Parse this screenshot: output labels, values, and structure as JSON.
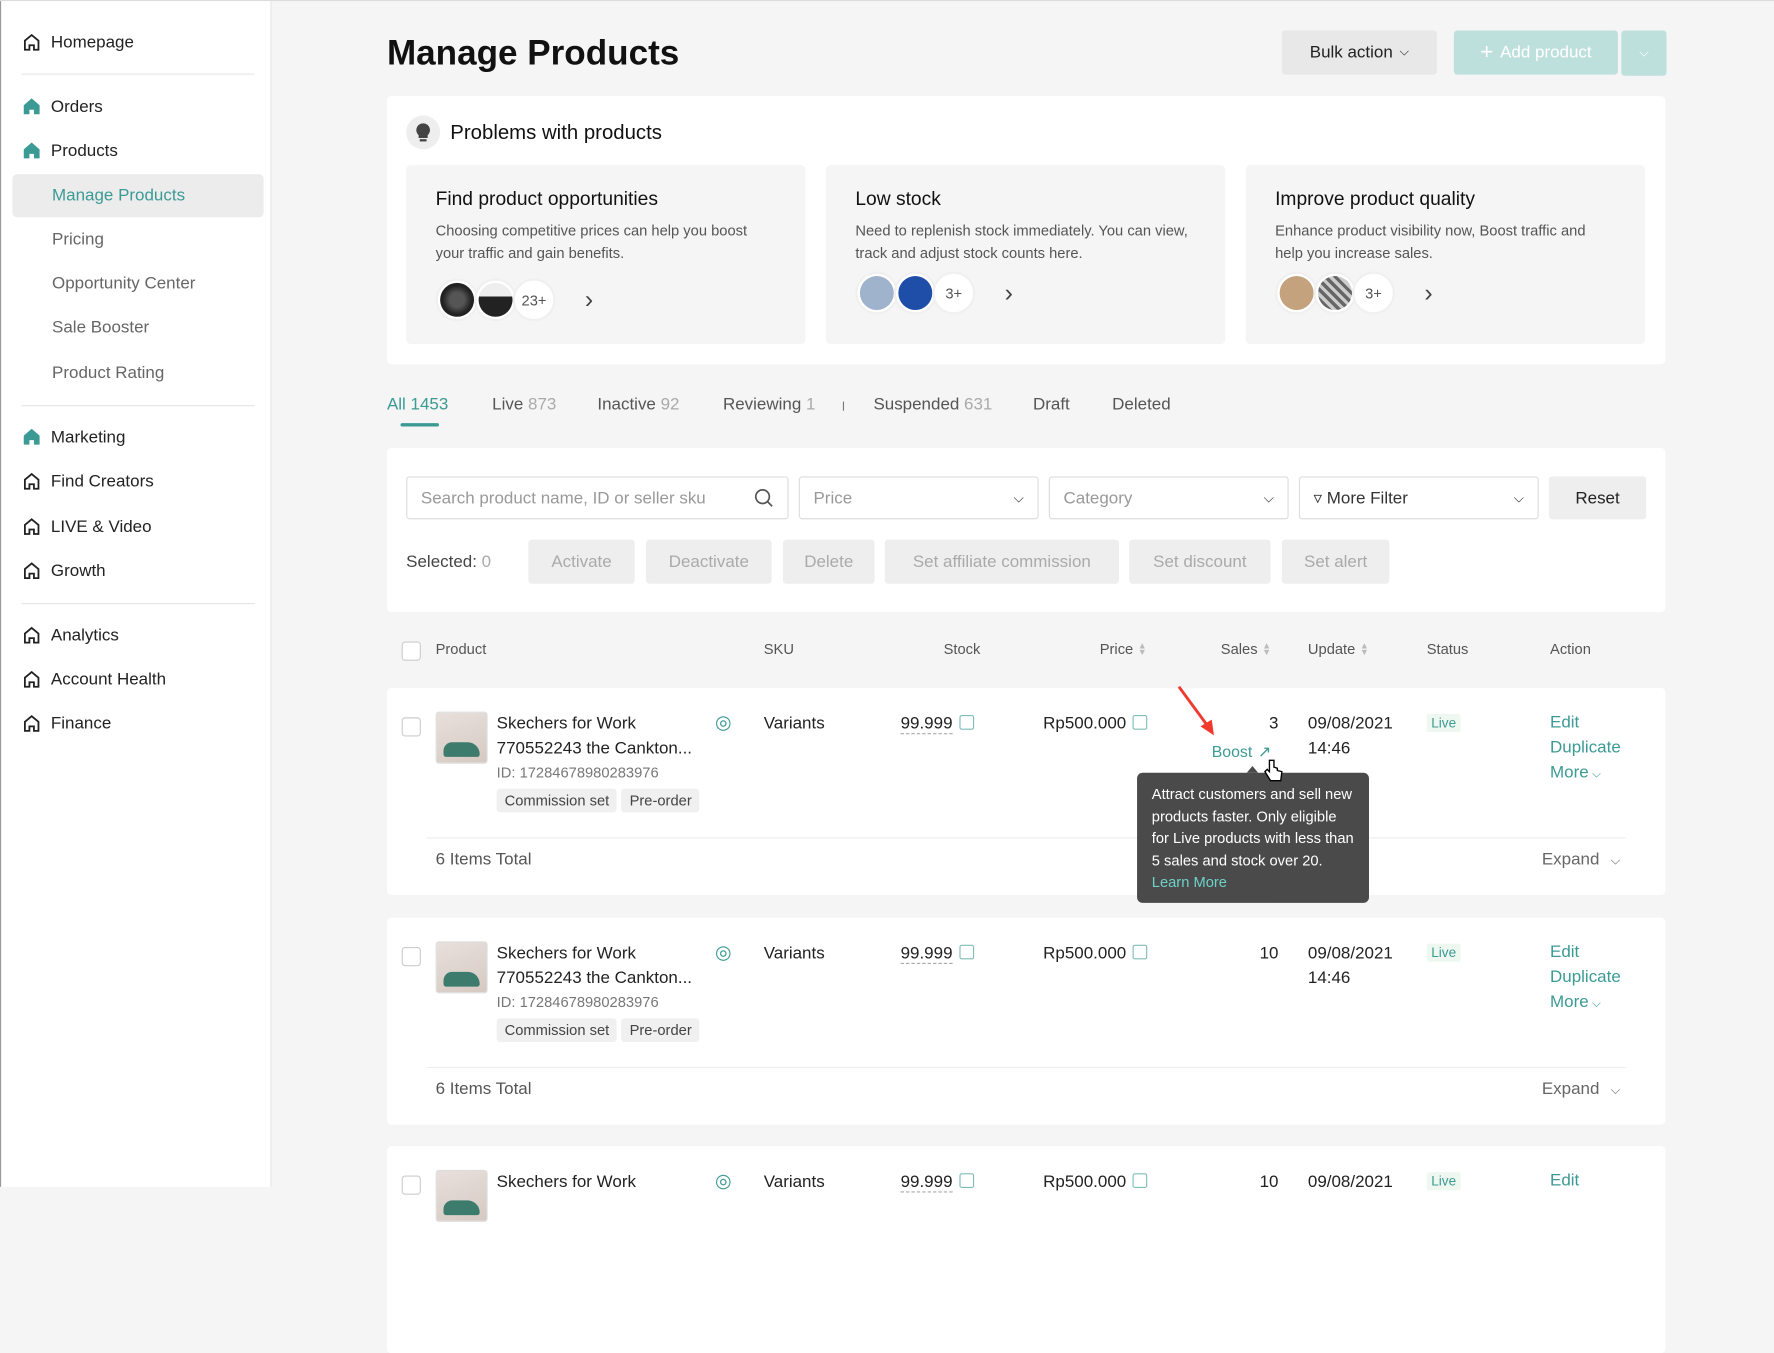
{
  "sidebar": {
    "home": "Homepage",
    "orders": "Orders",
    "products": "Products",
    "products_sub": [
      "Manage Products",
      "Pricing",
      "Opportunity Center",
      "Sale Booster",
      "Product Rating"
    ],
    "group2": [
      "Marketing",
      "Find Creators",
      "LIVE & Video",
      "Growth"
    ],
    "group3": [
      "Analytics",
      "Account Health",
      "Finance"
    ]
  },
  "header": {
    "title": "Manage Products",
    "bulk_action": "Bulk action",
    "add_product": "Add product"
  },
  "problems": {
    "title": "Problems with products",
    "cards": [
      {
        "title": "Find product opportunities",
        "desc": "Choosing competitive prices can help you boost your traffic and gain benefits.",
        "more": "23+"
      },
      {
        "title": "Low stock",
        "desc": "Need to replenish stock immediately. You can view, track and adjust stock counts here.",
        "more": "3+"
      },
      {
        "title": "Improve product quality",
        "desc": "Enhance product visibility now, Boost traffic and help you increase sales.",
        "more": "3+"
      }
    ]
  },
  "tabs": [
    {
      "label": "All",
      "count": "1453"
    },
    {
      "label": "Live",
      "count": "873"
    },
    {
      "label": "Inactive",
      "count": "92"
    },
    {
      "label": "Reviewing",
      "count": "1"
    },
    {
      "label": "Suspended",
      "count": "631"
    },
    {
      "label": "Draft",
      "count": ""
    },
    {
      "label": "Deleted",
      "count": ""
    }
  ],
  "filters": {
    "search_placeholder": "Search product name, ID or seller sku",
    "price": "Price",
    "category": "Category",
    "more_filter": "More Filter",
    "reset": "Reset"
  },
  "bulk": {
    "selected_label": "Selected:",
    "selected_count": "0",
    "actions": [
      "Activate",
      "Deactivate",
      "Delete",
      "Set affiliate commission",
      "Set discount",
      "Set alert"
    ]
  },
  "table": {
    "columns": [
      "Product",
      "SKU",
      "Stock",
      "Price",
      "Sales",
      "Update",
      "Status",
      "Action"
    ],
    "rows": [
      {
        "name1": "Skechers for Work",
        "name2": "770552243 the Cankton...",
        "id": "ID: 17284678980283976",
        "tags": [
          "Commission set",
          "Pre-order"
        ],
        "sku": "Variants",
        "stock": "99.999",
        "price": "Rp500.000",
        "sales": "3",
        "date": "09/08/2021",
        "time": "14:46",
        "status": "Live",
        "actions": [
          "Edit",
          "Duplicate",
          "More"
        ],
        "total": "6 Items Total",
        "expand": "Expand",
        "boost": "Boost"
      },
      {
        "name1": "Skechers for Work",
        "name2": "770552243 the Cankton...",
        "id": "ID: 17284678980283976",
        "tags": [
          "Commission set",
          "Pre-order"
        ],
        "sku": "Variants",
        "stock": "99.999",
        "price": "Rp500.000",
        "sales": "10",
        "date": "09/08/2021",
        "time": "14:46",
        "status": "Live",
        "actions": [
          "Edit",
          "Duplicate",
          "More"
        ],
        "total": "6 Items Total",
        "expand": "Expand"
      },
      {
        "name1": "Skechers for Work",
        "sku": "Variants",
        "stock": "99.999",
        "price": "Rp500.000",
        "sales": "10",
        "date": "09/08/2021",
        "status": "Live",
        "actions": [
          "Edit"
        ]
      }
    ]
  },
  "tooltip": {
    "text": "Attract customers and sell new products faster. Only eligible for Live products with less than 5 sales and stock over 20.",
    "link": "Learn More"
  },
  "colors": {
    "accent": "#3c9a94",
    "add_button": "#bde0dd",
    "tooltip_bg": "#4a4a4a",
    "arrow": "#f03a2e"
  }
}
